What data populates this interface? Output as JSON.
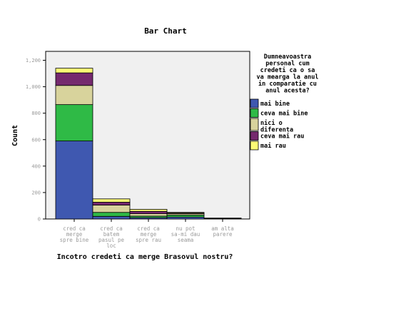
{
  "chart_data": {
    "type": "bar",
    "stacked": true,
    "title": "Bar Chart",
    "xlabel": "Incotro credeti ca merge Brasovul nostru?",
    "ylabel": "Count",
    "ylim": [
      0,
      1300
    ],
    "yticks": [
      "0",
      "200",
      "400",
      "600",
      "800",
      "1,000",
      "1,200"
    ],
    "ytick_values": [
      0,
      200,
      400,
      600,
      800,
      1000,
      1200
    ],
    "grid": false,
    "legend_position": "right",
    "legend_title": "Dumneavoastra personal cum credeti ca o sa va mearga la anul in comparatie cu anul acesta?",
    "legend_title_lines": [
      "Dumneavoastra",
      "personal cum",
      "credeti ca o sa",
      "va mearga la anul",
      "in comparatie cu",
      "anul acesta?"
    ],
    "categories": [
      "cred ca merge spre bine",
      "cred ca batem pasul pe loc",
      "cred ca merge spre rau",
      "nu pot sa-mi dau seama",
      "am alta parere"
    ],
    "category_lines": [
      [
        "cred ca",
        "merge",
        "spre bine"
      ],
      [
        "cred ca",
        "batem",
        "pasul pe",
        "loc"
      ],
      [
        "cred ca",
        "merge",
        "spre rau"
      ],
      [
        "nu pot",
        "sa-mi dau",
        "seama"
      ],
      [
        "am alta",
        "parere"
      ]
    ],
    "series": [
      {
        "name": "mai bine",
        "color": "#3f58b0",
        "values": [
          590,
          20,
          10,
          15,
          2
        ]
      },
      {
        "name": "ceva mai bine",
        "color": "#2fba46",
        "values": [
          275,
          30,
          12,
          15,
          2
        ]
      },
      {
        "name": "nici o diferenta",
        "color": "#d8d39c",
        "values": [
          145,
          55,
          18,
          10,
          1
        ]
      },
      {
        "name": "ceva mai rau",
        "color": "#75296e",
        "values": [
          95,
          22,
          18,
          5,
          1
        ]
      },
      {
        "name": "mai rau",
        "color": "#fdfc76",
        "values": [
          35,
          25,
          15,
          5,
          1
        ]
      }
    ],
    "legend_lines": [
      [
        "mai bine"
      ],
      [
        "ceva mai bine"
      ],
      [
        "nici o",
        "diferenta"
      ],
      [
        "ceva mai rau"
      ],
      [
        "mai rau"
      ]
    ]
  }
}
